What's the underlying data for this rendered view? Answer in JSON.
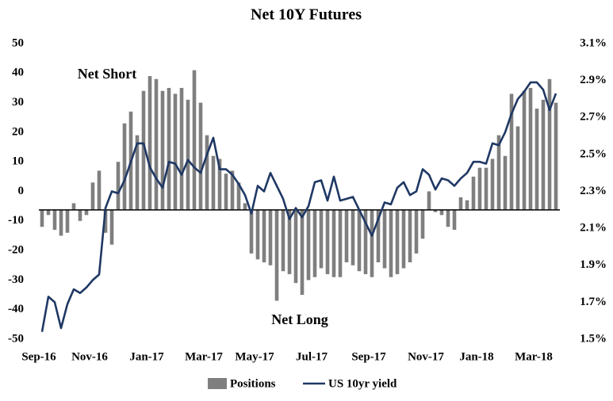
{
  "chart_data": {
    "type": "bar_line",
    "title": "Net 10Y Futures",
    "categories": [
      "Sep-16",
      null,
      null,
      null,
      null,
      null,
      null,
      null,
      "Nov-16",
      null,
      null,
      null,
      null,
      null,
      null,
      null,
      null,
      "Jan-17",
      null,
      null,
      null,
      null,
      null,
      null,
      null,
      null,
      "Mar-17",
      null,
      null,
      null,
      null,
      null,
      null,
      null,
      "May-17",
      null,
      null,
      null,
      null,
      null,
      null,
      null,
      null,
      "Jul-17",
      null,
      null,
      null,
      null,
      null,
      null,
      null,
      null,
      "Sep-17",
      null,
      null,
      null,
      null,
      null,
      null,
      null,
      null,
      "Nov-17",
      null,
      null,
      null,
      null,
      null,
      null,
      null,
      "Jan-18",
      null,
      null,
      null,
      null,
      null,
      null,
      null,
      null,
      "Mar-18",
      null,
      null,
      null
    ],
    "series": [
      {
        "name": "Positions",
        "color": "#7f7f7f",
        "values": [
          -12,
          -8,
          -13,
          -15,
          -14,
          -4,
          -10,
          -8,
          3,
          7,
          -14,
          -18,
          10,
          23,
          27,
          19,
          34,
          39,
          38,
          34,
          35,
          33,
          35,
          31,
          41,
          30,
          19,
          12,
          11,
          6,
          7,
          3,
          -4,
          -21,
          -23,
          -24,
          -25,
          -37,
          -27,
          -28,
          -31,
          -35,
          -30,
          -29,
          -26,
          -28,
          -29,
          -29,
          -24,
          -25,
          -27,
          -28,
          -29,
          -24,
          -26,
          -29,
          -28,
          -26,
          -24,
          -21,
          -16,
          0,
          -7,
          -8,
          -12,
          -13,
          -2,
          -3,
          5,
          8,
          8,
          11,
          19,
          12,
          33,
          22,
          34,
          35,
          28,
          31,
          38,
          30
        ]
      },
      {
        "name": "US 10yr yield",
        "color": "#1f3864",
        "axis": "y2",
        "values": [
          1.54,
          1.73,
          1.7,
          1.56,
          1.69,
          1.77,
          1.75,
          1.78,
          1.82,
          1.85,
          2.21,
          2.3,
          2.29,
          2.36,
          2.46,
          2.56,
          2.56,
          2.43,
          2.37,
          2.32,
          2.46,
          2.45,
          2.39,
          2.47,
          2.43,
          2.4,
          2.5,
          2.59,
          2.42,
          2.42,
          2.39,
          2.34,
          2.28,
          2.18,
          2.33,
          2.3,
          2.4,
          2.33,
          2.26,
          2.15,
          2.21,
          2.16,
          2.22,
          2.35,
          2.36,
          2.25,
          2.38,
          2.25,
          2.26,
          2.27,
          2.2,
          2.13,
          2.06,
          2.15,
          2.24,
          2.23,
          2.32,
          2.35,
          2.28,
          2.3,
          2.42,
          2.39,
          2.31,
          2.37,
          2.36,
          2.33,
          2.37,
          2.4,
          2.46,
          2.46,
          2.45,
          2.56,
          2.55,
          2.62,
          2.72,
          2.8,
          2.84,
          2.89,
          2.89,
          2.85,
          2.74,
          2.83
        ]
      }
    ],
    "ylim": [
      -50,
      50
    ],
    "yticks": [
      50,
      40,
      30,
      20,
      10,
      0,
      -10,
      -20,
      -30,
      -40,
      -50
    ],
    "y2lim": [
      1.5,
      3.1
    ],
    "y2ticks": [
      {
        "value": 3.1,
        "label": "3.1%"
      },
      {
        "value": 2.9,
        "label": "2.9%"
      },
      {
        "value": 2.7,
        "label": "2.7%"
      },
      {
        "value": 2.5,
        "label": "2.5%"
      },
      {
        "value": 2.3,
        "label": "2.3%"
      },
      {
        "value": 2.1,
        "label": "2.1%"
      },
      {
        "value": 1.9,
        "label": "1.9%"
      },
      {
        "value": 1.7,
        "label": "1.7%"
      },
      {
        "value": 1.5,
        "label": "1.5%"
      }
    ],
    "x_axis_at_y2": 2.2,
    "annotations": [
      "Net Short",
      "Net Long"
    ],
    "legend": "bottom"
  }
}
